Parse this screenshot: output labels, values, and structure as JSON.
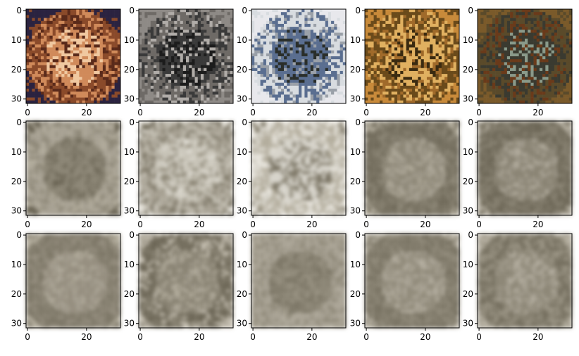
{
  "figure": {
    "rows": 3,
    "cols": 5,
    "x_ticks": [
      "0",
      "20"
    ],
    "y_ticks": [
      "0",
      "10",
      "20",
      "30"
    ],
    "panels": [
      {
        "id": "r1c1",
        "content": "orange-brown object on dark navy background",
        "palette": [
          "#2b2340",
          "#8a4a2a",
          "#d08a5a",
          "#f0c8a0",
          "#5a2a1a"
        ]
      },
      {
        "id": "r1c2",
        "content": "dark insect on grey background",
        "palette": [
          "#8e8a86",
          "#6e6a66",
          "#3a3a3a",
          "#1c1c1c",
          "#b0aca8"
        ]
      },
      {
        "id": "r1c3",
        "content": "bluish-grey and dark shape on white background",
        "palette": [
          "#e8e8ec",
          "#d8dce0",
          "#5a6e90",
          "#2a2e2a",
          "#9aa0a8"
        ]
      },
      {
        "id": "r1c4",
        "content": "leopard-like spotted pattern in yellow and brown",
        "palette": [
          "#c88a3a",
          "#6a4a1a",
          "#e0b060",
          "#3a2a10",
          "#a06a2a"
        ]
      },
      {
        "id": "r1c5",
        "content": "dark greenish creature on brown background",
        "palette": [
          "#7a5a2a",
          "#5a4a2a",
          "#3a3a30",
          "#8a9a8a",
          "#6a3a1a"
        ]
      },
      {
        "id": "r2c1",
        "content": "blurred brownish-grey reconstruction",
        "palette": [
          "#8e8878",
          "#7a7464",
          "#a8a294",
          "#6a6454",
          "#b4ae9e"
        ]
      },
      {
        "id": "r2c2",
        "content": "blurred reconstruction with light border",
        "palette": [
          "#c8c4b8",
          "#8e8878",
          "#a8a294",
          "#e0ddd4",
          "#7a7464"
        ]
      },
      {
        "id": "r2c3",
        "content": "blurred reconstruction with dark center",
        "palette": [
          "#d8d5cc",
          "#7a7464",
          "#b4ae9e",
          "#8e8878",
          "#ebe8e0"
        ]
      },
      {
        "id": "r2c4",
        "content": "blurred brownish-grey reconstruction",
        "palette": [
          "#8e8878",
          "#a8a294",
          "#7a7464",
          "#b4ae9e",
          "#6e6858"
        ]
      },
      {
        "id": "r2c5",
        "content": "blurred brownish-grey reconstruction",
        "palette": [
          "#8a8474",
          "#a09a8c",
          "#6e6858",
          "#b8b2a4",
          "#7e7868"
        ]
      },
      {
        "id": "r3c1",
        "content": "blurred brownish-grey reconstruction",
        "palette": [
          "#968f80",
          "#a8a294",
          "#7e7868",
          "#b4ae9e",
          "#8a8474"
        ]
      },
      {
        "id": "r3c2",
        "content": "blurred brownish-grey reconstruction",
        "palette": [
          "#8a8474",
          "#b4ae9e",
          "#6e6858",
          "#a09a8c",
          "#c4beb0"
        ]
      },
      {
        "id": "r3c3",
        "content": "blurred brownish-grey reconstruction",
        "palette": [
          "#8e8878",
          "#7a7464",
          "#a8a294",
          "#9a9484",
          "#b0aa9c"
        ]
      },
      {
        "id": "r3c4",
        "content": "blurred brownish-grey reconstruction",
        "palette": [
          "#928c7c",
          "#a8a294",
          "#7a7464",
          "#b8b2a4",
          "#868070"
        ]
      },
      {
        "id": "r3c5",
        "content": "blurred brownish-grey reconstruction",
        "palette": [
          "#8e8878",
          "#a8a294",
          "#767060",
          "#b8b2a4",
          "#9e9888"
        ]
      }
    ]
  }
}
